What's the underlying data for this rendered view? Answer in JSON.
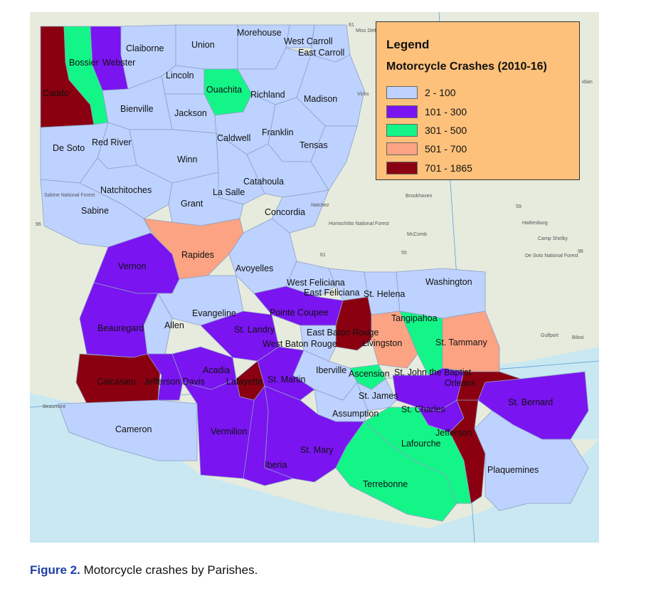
{
  "legend": {
    "title": "Legend",
    "subtitle": "Motorcycle Crashes (2010-16)",
    "items": [
      {
        "label": "2 - 100",
        "color": "#bed2ff"
      },
      {
        "label": "101 - 300",
        "color": "#7a14f0"
      },
      {
        "label": "301 - 500",
        "color": "#14f588"
      },
      {
        "label": "501 - 700",
        "color": "#fba383"
      },
      {
        "label": "701 - 1865",
        "color": "#8b0010"
      }
    ]
  },
  "caption": {
    "figure_number": "Figure 2.",
    "text": "Motorcycle crashes by Parishes."
  },
  "parishes": [
    {
      "name": "Caddo",
      "class": "701 - 1865"
    },
    {
      "name": "Bossier",
      "class": "301 - 500"
    },
    {
      "name": "Webster",
      "class": "101 - 300"
    },
    {
      "name": "Claiborne",
      "class": "2 - 100"
    },
    {
      "name": "Union",
      "class": "2 - 100"
    },
    {
      "name": "Morehouse",
      "class": "2 - 100"
    },
    {
      "name": "West Carroll",
      "class": "2 - 100"
    },
    {
      "name": "East Carroll",
      "class": "2 - 100"
    },
    {
      "name": "Lincoln",
      "class": "2 - 100"
    },
    {
      "name": "Ouachita",
      "class": "301 - 500"
    },
    {
      "name": "Richland",
      "class": "2 - 100"
    },
    {
      "name": "Madison",
      "class": "2 - 100"
    },
    {
      "name": "Bienville",
      "class": "2 - 100"
    },
    {
      "name": "Jackson",
      "class": "2 - 100"
    },
    {
      "name": "Caldwell",
      "class": "2 - 100"
    },
    {
      "name": "Franklin",
      "class": "2 - 100"
    },
    {
      "name": "Tensas",
      "class": "2 - 100"
    },
    {
      "name": "De Soto",
      "class": "2 - 100"
    },
    {
      "name": "Red River",
      "class": "2 - 100"
    },
    {
      "name": "Winn",
      "class": "2 - 100"
    },
    {
      "name": "Catahoula",
      "class": "2 - 100"
    },
    {
      "name": "Natchitoches",
      "class": "2 - 100"
    },
    {
      "name": "La Salle",
      "class": "2 - 100"
    },
    {
      "name": "Grant",
      "class": "2 - 100"
    },
    {
      "name": "Sabine",
      "class": "2 - 100"
    },
    {
      "name": "Concordia",
      "class": "2 - 100"
    },
    {
      "name": "Rapides",
      "class": "501 - 700"
    },
    {
      "name": "Vernon",
      "class": "101 - 300"
    },
    {
      "name": "Avoyelles",
      "class": "2 - 100"
    },
    {
      "name": "West Feliciana",
      "class": "2 - 100"
    },
    {
      "name": "East Feliciana",
      "class": "2 - 100"
    },
    {
      "name": "St. Helena",
      "class": "2 - 100"
    },
    {
      "name": "Washington",
      "class": "2 - 100"
    },
    {
      "name": "Evangeline",
      "class": "2 - 100"
    },
    {
      "name": "Pointe Coupee",
      "class": "101 - 300"
    },
    {
      "name": "Tangipahoa",
      "class": "301 - 500"
    },
    {
      "name": "Beauregard",
      "class": "101 - 300"
    },
    {
      "name": "Allen",
      "class": "2 - 100"
    },
    {
      "name": "St. Landry",
      "class": "101 - 300"
    },
    {
      "name": "East Baton Rouge",
      "class": "701 - 1865"
    },
    {
      "name": "West Baton Rouge",
      "class": "2 - 100"
    },
    {
      "name": "Livingston",
      "class": "501 - 700"
    },
    {
      "name": "St. Tammany",
      "class": "501 - 700"
    },
    {
      "name": "Acadia",
      "class": "101 - 300"
    },
    {
      "name": "Iberville",
      "class": "2 - 100"
    },
    {
      "name": "Calcasieu",
      "class": "701 - 1865"
    },
    {
      "name": "Jefferson Davis",
      "class": "101 - 300"
    },
    {
      "name": "Lafayette",
      "class": "701 - 1865"
    },
    {
      "name": "St. Martin",
      "class": "101 - 300"
    },
    {
      "name": "Ascension",
      "class": "301 - 500"
    },
    {
      "name": "St. John the Baptist",
      "class": "101 - 300"
    },
    {
      "name": "Orleans",
      "class": "701 - 1865"
    },
    {
      "name": "St. James",
      "class": "2 - 100"
    },
    {
      "name": "St. Bernard",
      "class": "101 - 300"
    },
    {
      "name": "Assumption",
      "class": "2 - 100"
    },
    {
      "name": "St. Charles",
      "class": "101 - 300"
    },
    {
      "name": "Cameron",
      "class": "2 - 100"
    },
    {
      "name": "Vermilion",
      "class": "101 - 300"
    },
    {
      "name": "Jefferson",
      "class": "701 - 1865"
    },
    {
      "name": "Lafourche",
      "class": "301 - 500"
    },
    {
      "name": "St. Mary",
      "class": "101 - 300"
    },
    {
      "name": "Iberia",
      "class": "101 - 300"
    },
    {
      "name": "Plaquemines",
      "class": "2 - 100"
    },
    {
      "name": "Terrebonne",
      "class": "301 - 500"
    }
  ],
  "basemap_labels": [
    {
      "id": "mississippi-delta",
      "text": "Miss Delta National Forest"
    },
    {
      "id": "vicksburg",
      "text": "Vicks"
    },
    {
      "id": "brookhaven",
      "text": "Brookhaven"
    },
    {
      "id": "mccomb",
      "text": "McComb"
    },
    {
      "id": "hattiesburg",
      "text": "Hattiesburg"
    },
    {
      "id": "camp-shelby",
      "text": "Camp Shelby"
    },
    {
      "id": "desoto-nf",
      "text": "De Soto National Forest"
    },
    {
      "id": "homochitto",
      "text": "Homochitto National Forest"
    },
    {
      "id": "natchez",
      "text": "Natchez"
    },
    {
      "id": "sabine-nf",
      "text": "Sabine National Forest"
    },
    {
      "id": "beaumont",
      "text": "Beaumont"
    },
    {
      "id": "gulfport",
      "text": "Gulfport"
    },
    {
      "id": "biloxi",
      "text": "Biloxi"
    },
    {
      "id": "meridian",
      "text": "idian"
    },
    {
      "id": "hwy-61-north",
      "text": "61"
    },
    {
      "id": "hwy-61-mid",
      "text": "61"
    },
    {
      "id": "hwy-55",
      "text": "55"
    },
    {
      "id": "hwy-59",
      "text": "59"
    },
    {
      "id": "hwy-96",
      "text": "96"
    },
    {
      "id": "hwy-98",
      "text": "98"
    }
  ]
}
